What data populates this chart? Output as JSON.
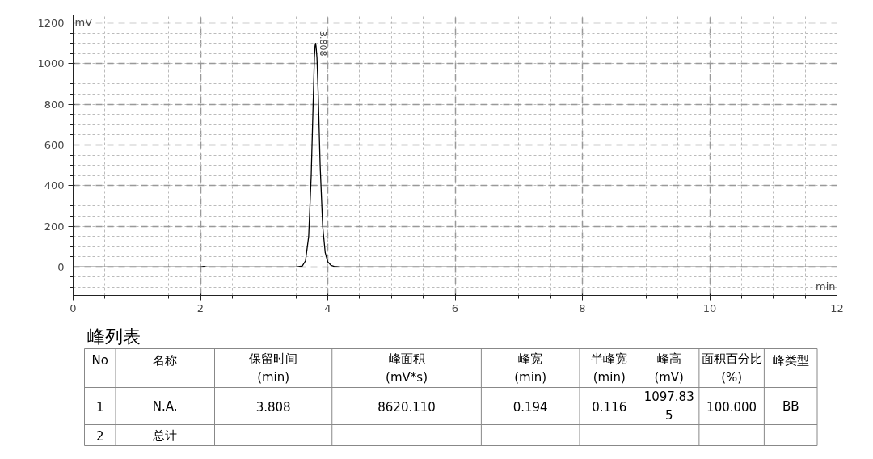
{
  "chart_data": {
    "type": "line",
    "xlabel": "min",
    "ylabel": "mV",
    "x": [
      0,
      1,
      2,
      2.05,
      2.1,
      3,
      3.5,
      3.6,
      3.65,
      3.7,
      3.74,
      3.77,
      3.79,
      3.8,
      3.808,
      3.816,
      3.83,
      3.85,
      3.88,
      3.92,
      3.96,
      4.0,
      4.05,
      4.1,
      4.2,
      6,
      8,
      10,
      12
    ],
    "series": [
      {
        "color": "#000000",
        "values": [
          0,
          0,
          0,
          3,
          0,
          0,
          0,
          5,
          30,
          150,
          450,
          800,
          1030,
          1085,
          1100,
          1085,
          1030,
          850,
          500,
          200,
          70,
          25,
          8,
          3,
          0,
          0,
          0,
          0,
          0
        ]
      }
    ],
    "xlim": [
      0,
      12
    ],
    "xticks": [
      0,
      2,
      4,
      6,
      8,
      10,
      12
    ],
    "ylim": [
      -140,
      1240
    ],
    "yticks": [
      0,
      200,
      400,
      600,
      800,
      1000,
      1200
    ],
    "grid": true,
    "annotations": [
      {
        "text": "3.808",
        "x": 3.808,
        "y": 1100
      },
      "峰列表",
      "No",
      "名称",
      "保留时间\n(min)",
      "峰面积\n(mV*s)",
      "峰宽\n(min)",
      "半峰宽\n(min)",
      "峰高\n(mV)",
      "面积百分比\n(%)",
      "峰类型",
      "1",
      "N.A.",
      "3.808",
      "8620.110",
      "0.194",
      "0.116",
      "1097.83\n5",
      "100.000",
      "BB",
      "2",
      "总计"
    ]
  }
}
